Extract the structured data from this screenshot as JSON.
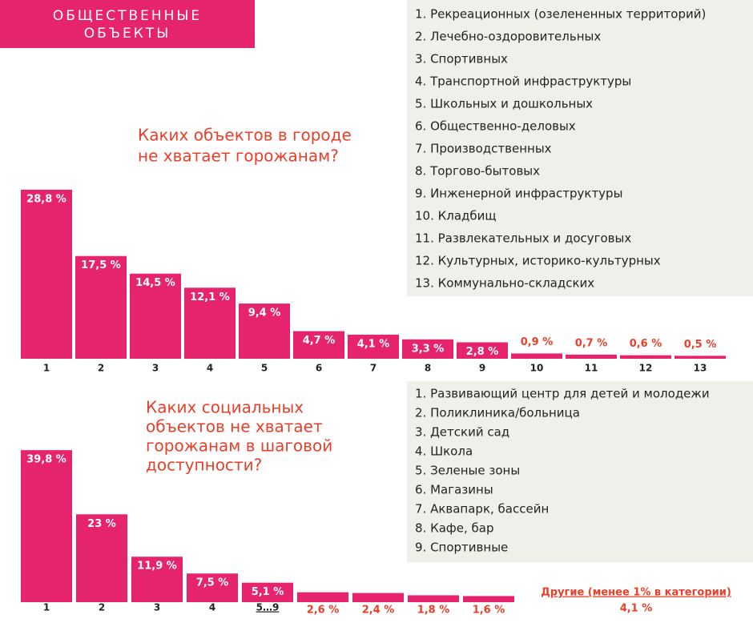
{
  "header": {
    "title": [
      "ОБЩЕСТВЕННЫЕ",
      "ОБЪЕКТЫ"
    ]
  },
  "chart_data": [
    {
      "type": "bar",
      "title": [
        "Каких объектов в городе",
        "не хватает горожанам?"
      ],
      "categories": [
        "1",
        "2",
        "3",
        "4",
        "5",
        "6",
        "7",
        "8",
        "9",
        "10",
        "11",
        "12",
        "13"
      ],
      "values": [
        28.8,
        17.5,
        14.5,
        12.1,
        9.4,
        4.7,
        4.1,
        3.3,
        2.8,
        0.9,
        0.7,
        0.6,
        0.5
      ],
      "value_labels": [
        "28,8 %",
        "17,5 %",
        "14,5 %",
        "12,1 %",
        "9,4 %",
        "4,7 %",
        "4,1 %",
        "3,3 %",
        "2,8 %",
        "0,9 %",
        "0,7 %",
        "0,6 %",
        "0,5 %"
      ],
      "color": "#e6246e",
      "legend_items": [
        "1. Рекреационных (озелененных территорий)",
        "2. Лечебно-оздоровительных",
        "3. Спортивных",
        "4. Транспортной инфраструктуры",
        "5. Школьных и дошкольных",
        "6. Общественно-деловых",
        "7. Производственных",
        "8. Торгово-бытовых",
        "9. Инженерной инфраструктуры",
        "10. Кладбищ",
        "11. Развлекательных и досуговых",
        "12. Культурных, историко-культурных",
        "13. Коммунально-складских"
      ]
    },
    {
      "type": "bar",
      "title": [
        "Каких социальных",
        "объектов не хватает",
        "горожанам в шаговой",
        "доступности?"
      ],
      "categories": [
        "1",
        "2",
        "3",
        "4",
        "5…9",
        null,
        null,
        null,
        null
      ],
      "values": [
        39.8,
        23,
        11.9,
        7.5,
        5.1,
        2.6,
        2.4,
        1.8,
        1.6
      ],
      "value_labels": [
        "39,8 %",
        "23 %",
        "11,9 %",
        "7,5 %",
        "5,1 %",
        "2,6 %",
        "2,4 %",
        "1,8 %",
        "1,6 %"
      ],
      "color": "#e6246e",
      "other": {
        "label": "Другие (менее 1% в категории)",
        "values": [
          4.1
        ],
        "value_labels": [
          "4,1 %"
        ]
      },
      "legend_items": [
        "1.  Развивающий центр для детей и молодежи",
        "2. Поликлиника/больница",
        "3. Детский сад",
        "4. Школа",
        "5. Зеленые зоны",
        "6. Магазины",
        "7. Аквапарк, бассейн",
        "8. Кафе, бар",
        "9. Спортивные"
      ]
    }
  ]
}
